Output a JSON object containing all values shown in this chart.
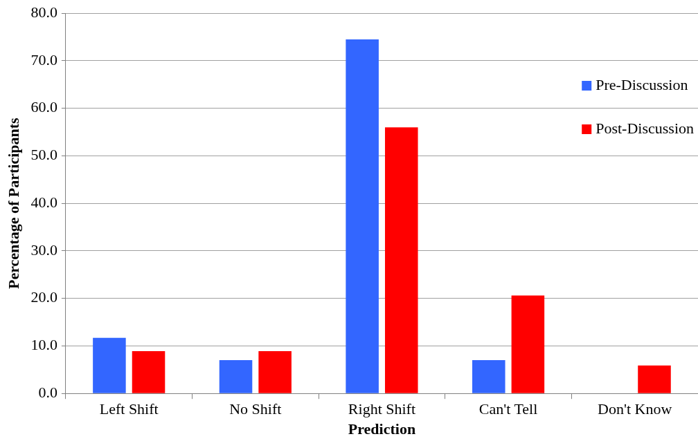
{
  "chart_data": {
    "type": "bar",
    "xlabel": "Prediction",
    "ylabel": "Percentage of Participants",
    "categories": [
      "Left Shift",
      "No Shift",
      "Right Shift",
      "Can't Tell",
      "Don't Know"
    ],
    "series": [
      {
        "name": "Pre-Discussion",
        "color": "#3366ff",
        "values": [
          11.7,
          7.0,
          74.5,
          7.0,
          0.0
        ]
      },
      {
        "name": "Post-Discussion",
        "color": "#ff0000",
        "values": [
          8.9,
          8.9,
          56.0,
          20.6,
          5.9
        ]
      }
    ],
    "ylim": [
      0,
      80
    ],
    "yticks": [
      {
        "value": 0,
        "label": "0.0"
      },
      {
        "value": 10,
        "label": "10.0"
      },
      {
        "value": 20,
        "label": "20.0"
      },
      {
        "value": 30,
        "label": "30.0"
      },
      {
        "value": 40,
        "label": "40.0"
      },
      {
        "value": 50,
        "label": "50.0"
      },
      {
        "value": 60,
        "label": "60.0"
      },
      {
        "value": 70,
        "label": "70.0"
      },
      {
        "value": 80,
        "label": "80.0"
      }
    ],
    "grid": "y",
    "legend": "right"
  }
}
